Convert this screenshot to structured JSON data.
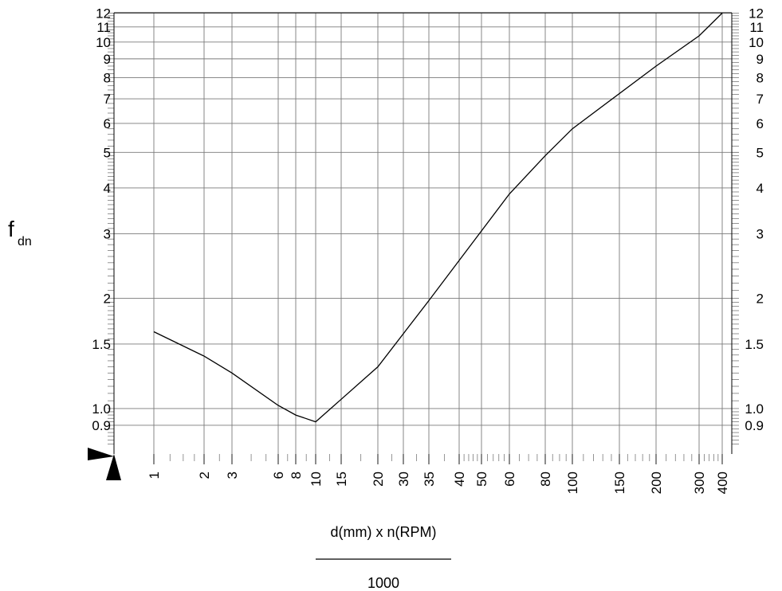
{
  "chart_data": {
    "type": "line",
    "ylabel": "f",
    "ylabel_subscript": "dn",
    "xlabel_numerator": "d(mm) x n(RPM)",
    "xlabel_denominator": "1000",
    "y_scale": "log",
    "ylim": [
      0.75,
      12.2
    ],
    "x_scale": "custom-log",
    "grid": true,
    "y_ticks": [
      {
        "value": 12,
        "label": "12"
      },
      {
        "value": 11,
        "label": "11"
      },
      {
        "value": 10,
        "label": "10"
      },
      {
        "value": 9,
        "label": "9"
      },
      {
        "value": 8,
        "label": "8"
      },
      {
        "value": 7,
        "label": "7"
      },
      {
        "value": 6,
        "label": "6"
      },
      {
        "value": 5,
        "label": "5"
      },
      {
        "value": 4,
        "label": "4"
      },
      {
        "value": 3,
        "label": "3"
      },
      {
        "value": 2,
        "label": "2"
      },
      {
        "value": 1.5,
        "label": "1.5"
      },
      {
        "value": 1.0,
        "label": "1.0"
      },
      {
        "value": 0.9,
        "label": "0.9"
      }
    ],
    "x_ticks": [
      {
        "value": 1,
        "label": "1"
      },
      {
        "value": 2,
        "label": "2"
      },
      {
        "value": 3,
        "label": "3"
      },
      {
        "value": 6,
        "label": "6"
      },
      {
        "value": 8,
        "label": "8"
      },
      {
        "value": 10,
        "label": "10"
      },
      {
        "value": 15,
        "label": "15"
      },
      {
        "value": 20,
        "label": "20"
      },
      {
        "value": 30,
        "label": "30"
      },
      {
        "value": 35,
        "label": "35"
      },
      {
        "value": 40,
        "label": "40"
      },
      {
        "value": 50,
        "label": "50"
      },
      {
        "value": 60,
        "label": "60"
      },
      {
        "value": 80,
        "label": "80"
      },
      {
        "value": 100,
        "label": "100"
      },
      {
        "value": 150,
        "label": "150"
      },
      {
        "value": 200,
        "label": "200"
      },
      {
        "value": 300,
        "label": "300"
      },
      {
        "value": 400,
        "label": "400"
      }
    ],
    "series": [
      {
        "points": [
          {
            "x": 1,
            "y": 1.62
          },
          {
            "x": 2,
            "y": 1.39
          },
          {
            "x": 3,
            "y": 1.25
          },
          {
            "x": 6,
            "y": 1.02
          },
          {
            "x": 8,
            "y": 0.96
          },
          {
            "x": 10,
            "y": 0.92
          },
          {
            "x": 15,
            "y": 1.06
          },
          {
            "x": 20,
            "y": 1.3
          },
          {
            "x": 35,
            "y": 1.97
          },
          {
            "x": 60,
            "y": 3.85
          },
          {
            "x": 80,
            "y": 4.9
          },
          {
            "x": 100,
            "y": 5.8
          },
          {
            "x": 200,
            "y": 8.6
          },
          {
            "x": 300,
            "y": 10.4
          },
          {
            "x": 400,
            "y": 12.0
          }
        ]
      }
    ]
  },
  "colors": {
    "line": "#000000",
    "grid": "#7a7a7a",
    "axis": "#000000"
  }
}
